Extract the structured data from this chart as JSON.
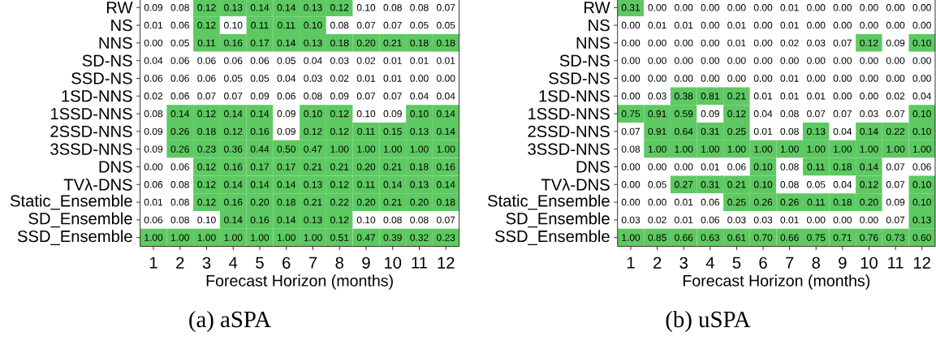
{
  "chart_data": [
    {
      "type": "heatmap",
      "title": "(a) aSPA",
      "xlabel": "Forecast Horizon (months)",
      "categories": [
        "1",
        "2",
        "3",
        "4",
        "5",
        "6",
        "7",
        "8",
        "9",
        "10",
        "11",
        "12"
      ],
      "y_categories": [
        "RW",
        "NS",
        "NNS",
        "SD-NS",
        "SSD-NS",
        "1SD-NNS",
        "1SSD-NNS",
        "2SSD-NNS",
        "3SSD-NNS",
        "DNS",
        "TVλ-DNS",
        "Static_Ensemble",
        "SD_Ensemble",
        "SSD_Ensemble"
      ],
      "cells": [
        [
          0.09,
          0.08,
          0.12,
          0.13,
          0.14,
          0.14,
          0.13,
          0.12,
          0.1,
          0.08,
          0.08,
          0.07
        ],
        [
          0.01,
          0.06,
          0.12,
          0.1,
          0.11,
          0.11,
          0.1,
          0.08,
          0.07,
          0.07,
          0.05,
          0.05
        ],
        [
          0.0,
          0.05,
          0.11,
          0.16,
          0.17,
          0.14,
          0.13,
          0.18,
          0.2,
          0.21,
          0.18,
          0.18
        ],
        [
          0.04,
          0.06,
          0.06,
          0.06,
          0.06,
          0.05,
          0.04,
          0.03,
          0.02,
          0.01,
          0.01,
          0.01
        ],
        [
          0.06,
          0.06,
          0.06,
          0.05,
          0.05,
          0.04,
          0.03,
          0.02,
          0.01,
          0.01,
          0.0,
          0.0
        ],
        [
          0.02,
          0.06,
          0.07,
          0.07,
          0.09,
          0.06,
          0.08,
          0.09,
          0.07,
          0.07,
          0.04,
          0.04
        ],
        [
          0.08,
          0.14,
          0.12,
          0.14,
          0.14,
          0.09,
          0.1,
          0.12,
          0.1,
          0.09,
          0.1,
          0.14
        ],
        [
          0.09,
          0.26,
          0.18,
          0.12,
          0.16,
          0.09,
          0.12,
          0.12,
          0.11,
          0.15,
          0.13,
          0.14
        ],
        [
          0.09,
          0.26,
          0.23,
          0.36,
          0.44,
          0.5,
          0.47,
          1.0,
          1.0,
          1.0,
          1.0,
          1.0
        ],
        [
          0.0,
          0.06,
          0.12,
          0.16,
          0.17,
          0.17,
          0.21,
          0.21,
          0.2,
          0.21,
          0.18,
          0.16
        ],
        [
          0.06,
          0.08,
          0.12,
          0.14,
          0.14,
          0.14,
          0.13,
          0.12,
          0.11,
          0.14,
          0.13,
          0.14
        ],
        [
          0.01,
          0.08,
          0.12,
          0.16,
          0.2,
          0.18,
          0.21,
          0.22,
          0.2,
          0.21,
          0.2,
          0.18
        ],
        [
          0.06,
          0.08,
          0.1,
          0.14,
          0.16,
          0.14,
          0.13,
          0.12,
          0.1,
          0.08,
          0.08,
          0.07
        ],
        [
          1.0,
          1.0,
          1.0,
          1.0,
          1.0,
          1.0,
          1.0,
          0.51,
          0.47,
          0.39,
          0.32,
          0.23
        ]
      ],
      "cell_labels": [
        [
          "0.09",
          "0.08",
          "0.12",
          "0.13",
          "0.14",
          "0.14",
          "0.13",
          "0.12",
          "0.10",
          "0.08",
          "0.08",
          "0.07"
        ],
        [
          "0.01",
          "0.06",
          "0.12",
          "0.10",
          "0.11",
          "0.11",
          "0.10",
          "0.08",
          "0.07",
          "0.07",
          "0.05",
          "0.05"
        ],
        [
          "0.00",
          "0.05",
          "0.11",
          "0.16",
          "0.17",
          "0.14",
          "0.13",
          "0.18",
          "0.20",
          "0.21",
          "0.18",
          "0.18"
        ],
        [
          "0.04",
          "0.06",
          "0.06",
          "0.06",
          "0.06",
          "0.05",
          "0.04",
          "0.03",
          "0.02",
          "0.01",
          "0.01",
          "0.01"
        ],
        [
          "0.06",
          "0.06",
          "0.06",
          "0.05",
          "0.05",
          "0.04",
          "0.03",
          "0.02",
          "0.01",
          "0.01",
          "0.00",
          "0.00"
        ],
        [
          "0.02",
          "0.06",
          "0.07",
          "0.07",
          "0.09",
          "0.06",
          "0.08",
          "0.09",
          "0.07",
          "0.07",
          "0.04",
          "0.04"
        ],
        [
          "0.08",
          "0.14",
          "0.12",
          "0.14",
          "0.14",
          "0.09",
          "0.10",
          "0.12",
          "0.10",
          "0.09",
          "0.10",
          "0.14"
        ],
        [
          "0.09",
          "0.26",
          "0.18",
          "0.12",
          "0.16",
          "0.09",
          "0.12",
          "0.12",
          "0.11",
          "0.15",
          "0.13",
          "0.14"
        ],
        [
          "0.09",
          "0.26",
          "0.23",
          "0.36",
          "0.44",
          "0.50",
          "0.47",
          "1.00",
          "1.00",
          "1.00",
          "1.00",
          "1.00"
        ],
        [
          "0.00",
          "0.06",
          "0.12",
          "0.16",
          "0.17",
          "0.17",
          "0.21",
          "0.21",
          "0.20",
          "0.21",
          "0.18",
          "0.16"
        ],
        [
          "0.06",
          "0.08",
          "0.12",
          "0.14",
          "0.14",
          "0.14",
          "0.13",
          "0.12",
          "0.11",
          "0.14",
          "0.13",
          "0.14"
        ],
        [
          "0.01",
          "0.08",
          "0.12",
          "0.16",
          "0.20",
          "0.18",
          "0.21",
          "0.22",
          "0.20",
          "0.21",
          "0.20",
          "0.18"
        ],
        [
          "0.06",
          "0.08",
          "0.10",
          "0.14",
          "0.16",
          "0.14",
          "0.13",
          "0.12",
          "0.10",
          "0.08",
          "0.08",
          "0.07"
        ],
        [
          "1.00",
          "1.00",
          "1.00",
          "1.00",
          "1.00",
          "1.00",
          "1.00",
          "0.51",
          "0.47",
          "0.39",
          "0.32",
          "0.23"
        ]
      ],
      "colors": [
        [
          "#ffffff",
          "#ffffff",
          "#5ec962",
          "#5ec962",
          "#5ec962",
          "#5ec962",
          "#5ec962",
          "#5ec962",
          "#ffffff",
          "#ffffff",
          "#ffffff",
          "#ffffff"
        ],
        [
          "#ffffff",
          "#ffffff",
          "#5ec962",
          "#ffffff",
          "#5ec962",
          "#5ec962",
          "#5ec962",
          "#ffffff",
          "#ffffff",
          "#ffffff",
          "#ffffff",
          "#ffffff"
        ],
        [
          "#ffffff",
          "#ffffff",
          "#5ec962",
          "#5ec962",
          "#5ec962",
          "#5ec962",
          "#5ec962",
          "#5ec962",
          "#5ec962",
          "#5ec962",
          "#5ec962",
          "#5ec962"
        ],
        [
          "#ffffff",
          "#ffffff",
          "#ffffff",
          "#ffffff",
          "#ffffff",
          "#ffffff",
          "#ffffff",
          "#ffffff",
          "#ffffff",
          "#ffffff",
          "#ffffff",
          "#ffffff"
        ],
        [
          "#ffffff",
          "#ffffff",
          "#ffffff",
          "#ffffff",
          "#ffffff",
          "#ffffff",
          "#ffffff",
          "#ffffff",
          "#ffffff",
          "#ffffff",
          "#ffffff",
          "#ffffff"
        ],
        [
          "#ffffff",
          "#ffffff",
          "#ffffff",
          "#ffffff",
          "#ffffff",
          "#ffffff",
          "#ffffff",
          "#ffffff",
          "#ffffff",
          "#ffffff",
          "#ffffff",
          "#ffffff"
        ],
        [
          "#ffffff",
          "#5ec962",
          "#5ec962",
          "#5ec962",
          "#5ec962",
          "#ffffff",
          "#5ec962",
          "#5ec962",
          "#ffffff",
          "#ffffff",
          "#5ec962",
          "#5ec962"
        ],
        [
          "#ffffff",
          "#5ec962",
          "#5ec962",
          "#5ec962",
          "#5ec962",
          "#ffffff",
          "#5ec962",
          "#5ec962",
          "#5ec962",
          "#5ec962",
          "#5ec962",
          "#5ec962"
        ],
        [
          "#ffffff",
          "#5ec962",
          "#5ec962",
          "#5ec962",
          "#5ec962",
          "#5ec962",
          "#5ec962",
          "#5ec962",
          "#5ec962",
          "#5ec962",
          "#5ec962",
          "#5ec962"
        ],
        [
          "#ffffff",
          "#ffffff",
          "#5ec962",
          "#5ec962",
          "#5ec962",
          "#5ec962",
          "#5ec962",
          "#5ec962",
          "#5ec962",
          "#5ec962",
          "#5ec962",
          "#5ec962"
        ],
        [
          "#ffffff",
          "#ffffff",
          "#5ec962",
          "#5ec962",
          "#5ec962",
          "#5ec962",
          "#5ec962",
          "#5ec962",
          "#5ec962",
          "#5ec962",
          "#5ec962",
          "#5ec962"
        ],
        [
          "#ffffff",
          "#ffffff",
          "#5ec962",
          "#5ec962",
          "#5ec962",
          "#5ec962",
          "#5ec962",
          "#5ec962",
          "#5ec962",
          "#5ec962",
          "#5ec962",
          "#5ec962"
        ],
        [
          "#ffffff",
          "#ffffff",
          "#ffffff",
          "#5ec962",
          "#5ec962",
          "#5ec962",
          "#5ec962",
          "#5ec962",
          "#ffffff",
          "#ffffff",
          "#ffffff",
          "#ffffff"
        ],
        [
          "#5ec962",
          "#5ec962",
          "#5ec962",
          "#5ec962",
          "#5ec962",
          "#5ec962",
          "#5ec962",
          "#5ec962",
          "#5ec962",
          "#5ec962",
          "#5ec962",
          "#5ec962"
        ]
      ]
    },
    {
      "type": "heatmap",
      "title": "(b) uSPA",
      "xlabel": "Forecast Horizon (months)",
      "categories": [
        "1",
        "2",
        "3",
        "4",
        "5",
        "6",
        "7",
        "8",
        "9",
        "10",
        "11",
        "12"
      ],
      "y_categories": [
        "RW",
        "NS",
        "NNS",
        "SD-NS",
        "SSD-NS",
        "1SD-NNS",
        "1SSD-NNS",
        "2SSD-NNS",
        "3SSD-NNS",
        "DNS",
        "TVλ-DNS",
        "Static_Ensemble",
        "SD_Ensemble",
        "SSD_Ensemble"
      ],
      "cells": [
        [
          0.31,
          0.0,
          0.0,
          0.0,
          0.0,
          0.0,
          0.01,
          0.0,
          0.0,
          0.0,
          0.0,
          0.0
        ],
        [
          0.0,
          0.01,
          0.01,
          0.0,
          0.01,
          0.0,
          0.01,
          0.0,
          0.0,
          0.0,
          0.0,
          0.0
        ],
        [
          0.0,
          0.0,
          0.0,
          0.0,
          0.01,
          0.0,
          0.02,
          0.03,
          0.07,
          0.12,
          0.09,
          0.1
        ],
        [
          0.0,
          0.0,
          0.0,
          0.0,
          0.0,
          0.0,
          0.0,
          0.0,
          0.0,
          0.0,
          0.0,
          0.0
        ],
        [
          0.0,
          0.0,
          0.0,
          0.0,
          0.0,
          0.0,
          0.01,
          0.0,
          0.0,
          0.0,
          0.0,
          0.0
        ],
        [
          0.0,
          0.03,
          0.38,
          0.81,
          0.21,
          0.01,
          0.01,
          0.01,
          0.0,
          0.0,
          0.02,
          0.04
        ],
        [
          0.75,
          0.91,
          0.59,
          0.09,
          0.12,
          0.04,
          0.08,
          0.07,
          0.07,
          0.03,
          0.07,
          0.1
        ],
        [
          0.07,
          0.91,
          0.64,
          0.31,
          0.25,
          0.01,
          0.08,
          0.13,
          0.04,
          0.14,
          0.22,
          0.1
        ],
        [
          0.08,
          1.0,
          1.0,
          1.0,
          1.0,
          1.0,
          1.0,
          1.0,
          1.0,
          1.0,
          1.0,
          1.0
        ],
        [
          0.0,
          0.0,
          0.0,
          0.01,
          0.06,
          0.1,
          0.08,
          0.11,
          0.18,
          0.14,
          0.07,
          0.06
        ],
        [
          0.0,
          0.05,
          0.27,
          0.31,
          0.21,
          0.1,
          0.08,
          0.05,
          0.04,
          0.12,
          0.07,
          0.1
        ],
        [
          0.0,
          0.0,
          0.01,
          0.06,
          0.25,
          0.26,
          0.26,
          0.11,
          0.18,
          0.2,
          0.09,
          0.1
        ],
        [
          0.03,
          0.02,
          0.01,
          0.06,
          0.03,
          0.03,
          0.01,
          0.0,
          0.0,
          0.0,
          0.07,
          0.13
        ],
        [
          1.0,
          0.85,
          0.66,
          0.63,
          0.61,
          0.7,
          0.66,
          0.75,
          0.71,
          0.76,
          0.73,
          0.6
        ]
      ],
      "cell_labels": [
        [
          "0.31",
          "0.00",
          "0.00",
          "0.00",
          "0.00",
          "0.00",
          "0.01",
          "0.00",
          "0.00",
          "0.00",
          "0.00",
          "0.00"
        ],
        [
          "0.00",
          "0.01",
          "0.01",
          "0.00",
          "0.01",
          "0.00",
          "0.01",
          "0.00",
          "0.00",
          "0.00",
          "0.00",
          "0.00"
        ],
        [
          "0.00",
          "0.00",
          "0.00",
          "0.00",
          "0.01",
          "0.00",
          "0.02",
          "0.03",
          "0.07",
          "0.12",
          "0.09",
          "0.10"
        ],
        [
          "0.00",
          "0.00",
          "0.00",
          "0.00",
          "0.00",
          "0.00",
          "0.00",
          "0.00",
          "0.00",
          "0.00",
          "0.00",
          "0.00"
        ],
        [
          "0.00",
          "0.00",
          "0.00",
          "0.00",
          "0.00",
          "0.00",
          "0.01",
          "0.00",
          "0.00",
          "0.00",
          "0.00",
          "0.00"
        ],
        [
          "0.00",
          "0.03",
          "0.38",
          "0.81",
          "0.21",
          "0.01",
          "0.01",
          "0.01",
          "0.00",
          "0.00",
          "0.02",
          "0.04"
        ],
        [
          "0.75",
          "0.91",
          "0.59",
          "0.09",
          "0.12",
          "0.04",
          "0.08",
          "0.07",
          "0.07",
          "0.03",
          "0.07",
          "0.10"
        ],
        [
          "0.07",
          "0.91",
          "0.64",
          "0.31",
          "0.25",
          "0.01",
          "0.08",
          "0.13",
          "0.04",
          "0.14",
          "0.22",
          "0.10"
        ],
        [
          "0.08",
          "1.00",
          "1.00",
          "1.00",
          "1.00",
          "1.00",
          "1.00",
          "1.00",
          "1.00",
          "1.00",
          "1.00",
          "1.00"
        ],
        [
          "0.00",
          "0.00",
          "0.00",
          "0.01",
          "0.06",
          "0.10",
          "0.08",
          "0.11",
          "0.18",
          "0.14",
          "0.07",
          "0.06"
        ],
        [
          "0.00",
          "0.05",
          "0.27",
          "0.31",
          "0.21",
          "0.10",
          "0.08",
          "0.05",
          "0.04",
          "0.12",
          "0.07",
          "0.10"
        ],
        [
          "0.00",
          "0.00",
          "0.01",
          "0.06",
          "0.25",
          "0.26",
          "0.26",
          "0.11",
          "0.18",
          "0.20",
          "0.09",
          "0.10"
        ],
        [
          "0.03",
          "0.02",
          "0.01",
          "0.06",
          "0.03",
          "0.03",
          "0.01",
          "0.00",
          "0.00",
          "0.00",
          "0.07",
          "0.13"
        ],
        [
          "1.00",
          "0.85",
          "0.66",
          "0.63",
          "0.61",
          "0.70",
          "0.66",
          "0.75",
          "0.71",
          "0.76",
          "0.73",
          "0.60"
        ]
      ],
      "colors": [
        [
          "#5ec962",
          "#ffffff",
          "#ffffff",
          "#ffffff",
          "#ffffff",
          "#ffffff",
          "#ffffff",
          "#ffffff",
          "#ffffff",
          "#ffffff",
          "#ffffff",
          "#ffffff"
        ],
        [
          "#ffffff",
          "#ffffff",
          "#ffffff",
          "#ffffff",
          "#ffffff",
          "#ffffff",
          "#ffffff",
          "#ffffff",
          "#ffffff",
          "#ffffff",
          "#ffffff",
          "#ffffff"
        ],
        [
          "#ffffff",
          "#ffffff",
          "#ffffff",
          "#ffffff",
          "#ffffff",
          "#ffffff",
          "#ffffff",
          "#ffffff",
          "#ffffff",
          "#5ec962",
          "#ffffff",
          "#5ec962"
        ],
        [
          "#ffffff",
          "#ffffff",
          "#ffffff",
          "#ffffff",
          "#ffffff",
          "#ffffff",
          "#ffffff",
          "#ffffff",
          "#ffffff",
          "#ffffff",
          "#ffffff",
          "#ffffff"
        ],
        [
          "#ffffff",
          "#ffffff",
          "#ffffff",
          "#ffffff",
          "#ffffff",
          "#ffffff",
          "#ffffff",
          "#ffffff",
          "#ffffff",
          "#ffffff",
          "#ffffff",
          "#ffffff"
        ],
        [
          "#ffffff",
          "#ffffff",
          "#5ec962",
          "#5ec962",
          "#5ec962",
          "#ffffff",
          "#ffffff",
          "#ffffff",
          "#ffffff",
          "#ffffff",
          "#ffffff",
          "#ffffff"
        ],
        [
          "#5ec962",
          "#5ec962",
          "#5ec962",
          "#ffffff",
          "#5ec962",
          "#ffffff",
          "#ffffff",
          "#ffffff",
          "#ffffff",
          "#ffffff",
          "#ffffff",
          "#5ec962"
        ],
        [
          "#ffffff",
          "#5ec962",
          "#5ec962",
          "#5ec962",
          "#5ec962",
          "#ffffff",
          "#ffffff",
          "#5ec962",
          "#ffffff",
          "#5ec962",
          "#5ec962",
          "#5ec962"
        ],
        [
          "#ffffff",
          "#5ec962",
          "#5ec962",
          "#5ec962",
          "#5ec962",
          "#5ec962",
          "#5ec962",
          "#5ec962",
          "#5ec962",
          "#5ec962",
          "#5ec962",
          "#5ec962"
        ],
        [
          "#ffffff",
          "#ffffff",
          "#ffffff",
          "#ffffff",
          "#ffffff",
          "#5ec962",
          "#ffffff",
          "#5ec962",
          "#5ec962",
          "#5ec962",
          "#ffffff",
          "#ffffff"
        ],
        [
          "#ffffff",
          "#ffffff",
          "#5ec962",
          "#5ec962",
          "#5ec962",
          "#5ec962",
          "#ffffff",
          "#ffffff",
          "#ffffff",
          "#5ec962",
          "#ffffff",
          "#5ec962"
        ],
        [
          "#ffffff",
          "#ffffff",
          "#ffffff",
          "#ffffff",
          "#5ec962",
          "#5ec962",
          "#5ec962",
          "#5ec962",
          "#5ec962",
          "#5ec962",
          "#ffffff",
          "#5ec962"
        ],
        [
          "#ffffff",
          "#ffffff",
          "#ffffff",
          "#ffffff",
          "#ffffff",
          "#ffffff",
          "#ffffff",
          "#ffffff",
          "#ffffff",
          "#ffffff",
          "#ffffff",
          "#5ec962"
        ],
        [
          "#5ec962",
          "#5ec962",
          "#5ec962",
          "#5ec962",
          "#5ec962",
          "#5ec962",
          "#5ec962",
          "#5ec962",
          "#5ec962",
          "#5ec962",
          "#5ec962",
          "#5ec962"
        ]
      ]
    }
  ]
}
